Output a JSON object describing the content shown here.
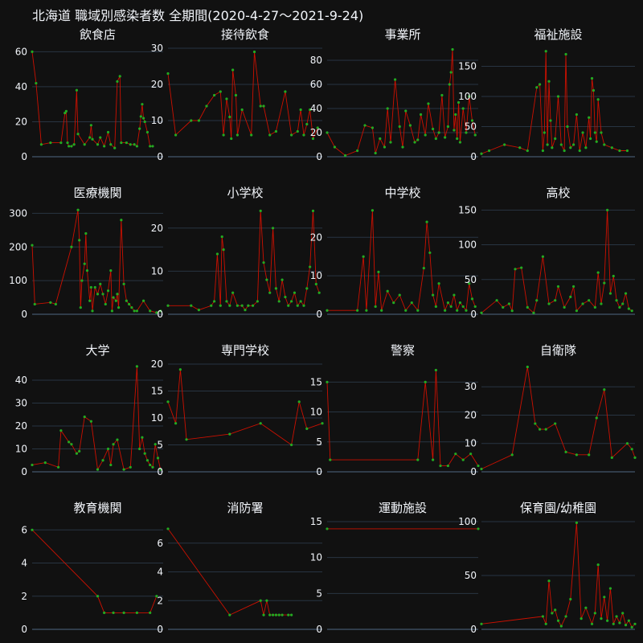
{
  "title": "北海道 職域別感染者数 全期間(2020-4-27～2021-9-24)",
  "colors": {
    "background": "#111111",
    "grid": "#283442",
    "axis": "#506784",
    "text": "#f2f5fa",
    "line": "#cc1100",
    "marker": "#22aa22"
  },
  "chart_data": [
    {
      "type": "line",
      "title": "飲食店",
      "yticks": [
        0,
        20,
        40,
        60
      ],
      "ylim": [
        0,
        62
      ],
      "xlim": [
        0,
        100
      ],
      "x": [
        0,
        3,
        7,
        14,
        22,
        25,
        26,
        27,
        28,
        30,
        32,
        34,
        35,
        40,
        44,
        45,
        46,
        50,
        52,
        55,
        58,
        60,
        63,
        65,
        67,
        68,
        72,
        75,
        78,
        80,
        82,
        83,
        84,
        85,
        86,
        88,
        90,
        92
      ],
      "values": [
        60,
        42,
        7,
        8,
        8,
        25,
        26,
        8,
        6,
        6,
        7,
        38,
        13,
        7,
        11,
        18,
        10,
        7,
        11,
        6,
        14,
        7,
        5,
        43,
        46,
        8,
        8,
        7,
        7,
        6,
        16,
        23,
        30,
        22,
        20,
        14,
        6,
        6
      ]
    },
    {
      "type": "line",
      "title": "接待飲食",
      "yticks": [
        0,
        10,
        20,
        30
      ],
      "ylim": [
        0,
        30
      ],
      "xlim": [
        0,
        100
      ],
      "x": [
        0,
        5,
        15,
        20,
        25,
        30,
        34,
        36,
        38,
        40,
        41,
        42,
        44,
        45,
        48,
        54,
        56,
        60,
        62,
        66,
        70,
        76,
        80,
        84,
        86,
        88,
        90,
        92,
        94,
        97
      ],
      "values": [
        23,
        6,
        10,
        10,
        14,
        17,
        18,
        6,
        16,
        11,
        5,
        24,
        17,
        6,
        13,
        6,
        29,
        14,
        14,
        6,
        7,
        18,
        6,
        7,
        13,
        6,
        9,
        13,
        5,
        8
      ]
    },
    {
      "type": "line",
      "title": "事業所",
      "yticks": [
        0,
        20,
        40,
        60,
        80
      ],
      "ylim": [
        0,
        90
      ],
      "xlim": [
        0,
        100
      ],
      "x": [
        0,
        5,
        12,
        20,
        25,
        30,
        32,
        35,
        38,
        40,
        42,
        45,
        48,
        50,
        52,
        55,
        58,
        60,
        62,
        65,
        67,
        70,
        72,
        74,
        76,
        78,
        80,
        81,
        82,
        83,
        84,
        85,
        86,
        87,
        88,
        90,
        92,
        94,
        96,
        98
      ],
      "values": [
        20,
        8,
        1,
        5,
        26,
        24,
        3,
        15,
        8,
        40,
        12,
        64,
        25,
        8,
        38,
        26,
        12,
        14,
        35,
        18,
        44,
        23,
        15,
        20,
        51,
        16,
        25,
        60,
        70,
        89,
        22,
        35,
        15,
        45,
        12,
        40,
        20,
        50,
        30,
        18
      ]
    },
    {
      "type": "line",
      "title": "福祉施設",
      "yticks": [
        0,
        50,
        100,
        150
      ],
      "ylim": [
        0,
        180
      ],
      "xlim": [
        0,
        100
      ],
      "x": [
        0,
        5,
        15,
        25,
        30,
        36,
        38,
        40,
        41,
        42,
        43,
        44,
        45,
        46,
        48,
        50,
        52,
        54,
        55,
        56,
        58,
        60,
        62,
        64,
        66,
        68,
        70,
        71,
        72,
        73,
        74,
        75,
        76,
        78,
        80,
        85,
        90,
        95
      ],
      "values": [
        5,
        10,
        20,
        15,
        10,
        115,
        120,
        10,
        40,
        175,
        20,
        125,
        60,
        15,
        30,
        100,
        20,
        10,
        170,
        50,
        15,
        20,
        70,
        10,
        40,
        15,
        65,
        30,
        130,
        110,
        40,
        25,
        95,
        40,
        20,
        15,
        10,
        10
      ]
    },
    {
      "type": "line",
      "title": "医療機関",
      "yticks": [
        0,
        100,
        200,
        300
      ],
      "ylim": [
        0,
        320
      ],
      "xlim": [
        0,
        100
      ],
      "x": [
        0,
        2,
        14,
        18,
        30,
        35,
        36,
        37,
        38,
        40,
        41,
        42,
        44,
        45,
        46,
        48,
        50,
        52,
        54,
        56,
        58,
        60,
        61,
        62,
        64,
        65,
        66,
        68,
        70,
        72,
        74,
        76,
        78,
        80,
        85,
        90,
        95,
        98
      ],
      "values": [
        205,
        30,
        35,
        30,
        200,
        310,
        220,
        20,
        100,
        150,
        240,
        130,
        40,
        80,
        10,
        80,
        60,
        90,
        60,
        30,
        70,
        130,
        10,
        50,
        40,
        60,
        20,
        280,
        90,
        40,
        30,
        20,
        10,
        10,
        40,
        10,
        5,
        10
      ]
    },
    {
      "type": "line",
      "title": "小学校",
      "yticks": [
        0,
        10,
        20
      ],
      "ylim": [
        0,
        25
      ],
      "xlim": [
        0,
        100
      ],
      "x": [
        0,
        15,
        20,
        28,
        30,
        32,
        34,
        35,
        36,
        38,
        40,
        42,
        45,
        48,
        50,
        52,
        55,
        58,
        60,
        62,
        64,
        66,
        68,
        70,
        72,
        74,
        76,
        78,
        80,
        82,
        84,
        86,
        88,
        90,
        92,
        94,
        96,
        98
      ],
      "values": [
        2,
        2,
        1,
        2,
        3,
        14,
        2,
        18,
        15,
        3,
        2,
        5,
        2,
        2,
        1,
        2,
        2,
        3,
        24,
        12,
        8,
        5,
        20,
        6,
        3,
        8,
        4,
        2,
        3,
        5,
        2,
        3,
        2,
        6,
        11,
        24,
        7,
        5
      ]
    },
    {
      "type": "line",
      "title": "中学校",
      "yticks": [
        0,
        10,
        20
      ],
      "ylim": [
        0,
        28
      ],
      "xlim": [
        0,
        100
      ],
      "x": [
        0,
        20,
        24,
        26,
        30,
        32,
        34,
        36,
        40,
        44,
        48,
        52,
        56,
        60,
        64,
        66,
        68,
        70,
        72,
        74,
        78,
        80,
        82,
        84,
        86,
        88,
        90,
        92,
        94,
        96,
        98
      ],
      "values": [
        1,
        1,
        15,
        1,
        27,
        2,
        11,
        1,
        6,
        3,
        5,
        1,
        3,
        1,
        12,
        24,
        16,
        5,
        2,
        8,
        1,
        3,
        2,
        5,
        1,
        3,
        2,
        1,
        8,
        4,
        2
      ]
    },
    {
      "type": "line",
      "title": "高校",
      "yticks": [
        0,
        50,
        100,
        150
      ],
      "ylim": [
        0,
        155
      ],
      "xlim": [
        0,
        100
      ],
      "x": [
        0,
        10,
        14,
        18,
        20,
        22,
        26,
        30,
        34,
        36,
        40,
        44,
        48,
        50,
        54,
        58,
        60,
        62,
        66,
        70,
        74,
        76,
        78,
        80,
        82,
        84,
        86,
        88,
        90,
        92,
        94,
        96,
        98
      ],
      "values": [
        2,
        20,
        10,
        15,
        5,
        65,
        67,
        10,
        2,
        20,
        83,
        15,
        20,
        40,
        10,
        25,
        40,
        5,
        15,
        20,
        10,
        60,
        15,
        45,
        150,
        30,
        55,
        20,
        10,
        15,
        30,
        8,
        5
      ]
    },
    {
      "type": "line",
      "title": "大学",
      "yticks": [
        0,
        10,
        20,
        30,
        40
      ],
      "ylim": [
        0,
        47
      ],
      "xlim": [
        0,
        100
      ],
      "x": [
        0,
        10,
        20,
        22,
        28,
        30,
        34,
        36,
        40,
        45,
        50,
        54,
        58,
        60,
        62,
        65,
        70,
        75,
        80,
        82,
        84,
        86,
        88,
        90,
        92,
        94,
        96,
        98
      ],
      "values": [
        3,
        4,
        2,
        18,
        13,
        12,
        8,
        9,
        24,
        22,
        1,
        5,
        10,
        3,
        12,
        14,
        1,
        2,
        46,
        10,
        15,
        8,
        5,
        3,
        2,
        12,
        6,
        1
      ]
    },
    {
      "type": "line",
      "title": "専門学校",
      "yticks": [
        0,
        5,
        10,
        15,
        20
      ],
      "ylim": [
        0,
        20
      ],
      "xlim": [
        0,
        100
      ],
      "x": [
        0,
        5,
        8,
        12,
        40,
        60,
        80,
        85,
        90,
        100
      ],
      "values": [
        13,
        9,
        19,
        6,
        7,
        9,
        5,
        13,
        8,
        9
      ]
    },
    {
      "type": "line",
      "title": "警察",
      "yticks": [
        0,
        5,
        10,
        15
      ],
      "ylim": [
        0,
        18
      ],
      "xlim": [
        0,
        100
      ],
      "x": [
        0,
        2,
        60,
        65,
        70,
        72,
        75,
        80,
        85,
        90,
        95,
        100
      ],
      "values": [
        15,
        2,
        2,
        15,
        2,
        17,
        1,
        1,
        3,
        2,
        3,
        1
      ]
    },
    {
      "type": "line",
      "title": "自衛隊",
      "yticks": [
        0,
        10,
        20,
        30
      ],
      "ylim": [
        0,
        38
      ],
      "xlim": [
        0,
        100
      ],
      "x": [
        0,
        20,
        30,
        35,
        38,
        42,
        48,
        55,
        62,
        70,
        75,
        80,
        85,
        95,
        98,
        100
      ],
      "values": [
        1,
        6,
        37,
        17,
        15,
        15,
        17,
        7,
        6,
        6,
        19,
        29,
        5,
        10,
        8,
        5
      ]
    },
    {
      "type": "line",
      "title": "教育機関",
      "yticks": [
        0,
        2,
        4,
        6
      ],
      "ylim": [
        0,
        6.5
      ],
      "xlim": [
        0,
        100
      ],
      "x": [
        0,
        50,
        55,
        62,
        70,
        80,
        90,
        95
      ],
      "values": [
        6,
        2,
        1,
        1,
        1,
        1,
        1,
        2
      ]
    },
    {
      "type": "line",
      "title": "消防署",
      "yticks": [
        0,
        2,
        4,
        6
      ],
      "ylim": [
        0,
        7.5
      ],
      "xlim": [
        0,
        100
      ],
      "x": [
        0,
        40,
        60,
        62,
        64,
        66,
        68,
        70,
        72,
        74,
        78,
        80
      ],
      "values": [
        7,
        1,
        2,
        1,
        2,
        1,
        1,
        1,
        1,
        1,
        1,
        1
      ]
    },
    {
      "type": "line",
      "title": "運動施設",
      "yticks": [
        0,
        5,
        10,
        15
      ],
      "ylim": [
        0,
        15
      ],
      "xlim": [
        0,
        100
      ],
      "x": [
        0,
        100
      ],
      "values": [
        14,
        14
      ]
    },
    {
      "type": "line",
      "title": "保育園/幼稚園",
      "yticks": [
        0,
        50,
        100
      ],
      "ylim": [
        0,
        100
      ],
      "xlim": [
        0,
        100
      ],
      "x": [
        0,
        40,
        42,
        44,
        46,
        48,
        50,
        52,
        55,
        58,
        62,
        65,
        68,
        72,
        74,
        76,
        78,
        80,
        82,
        84,
        86,
        88,
        90,
        92,
        94,
        96,
        98,
        100
      ],
      "values": [
        5,
        12,
        5,
        45,
        15,
        18,
        8,
        3,
        12,
        28,
        99,
        10,
        20,
        5,
        15,
        60,
        10,
        30,
        8,
        38,
        5,
        12,
        6,
        15,
        4,
        8,
        2,
        5
      ]
    }
  ]
}
